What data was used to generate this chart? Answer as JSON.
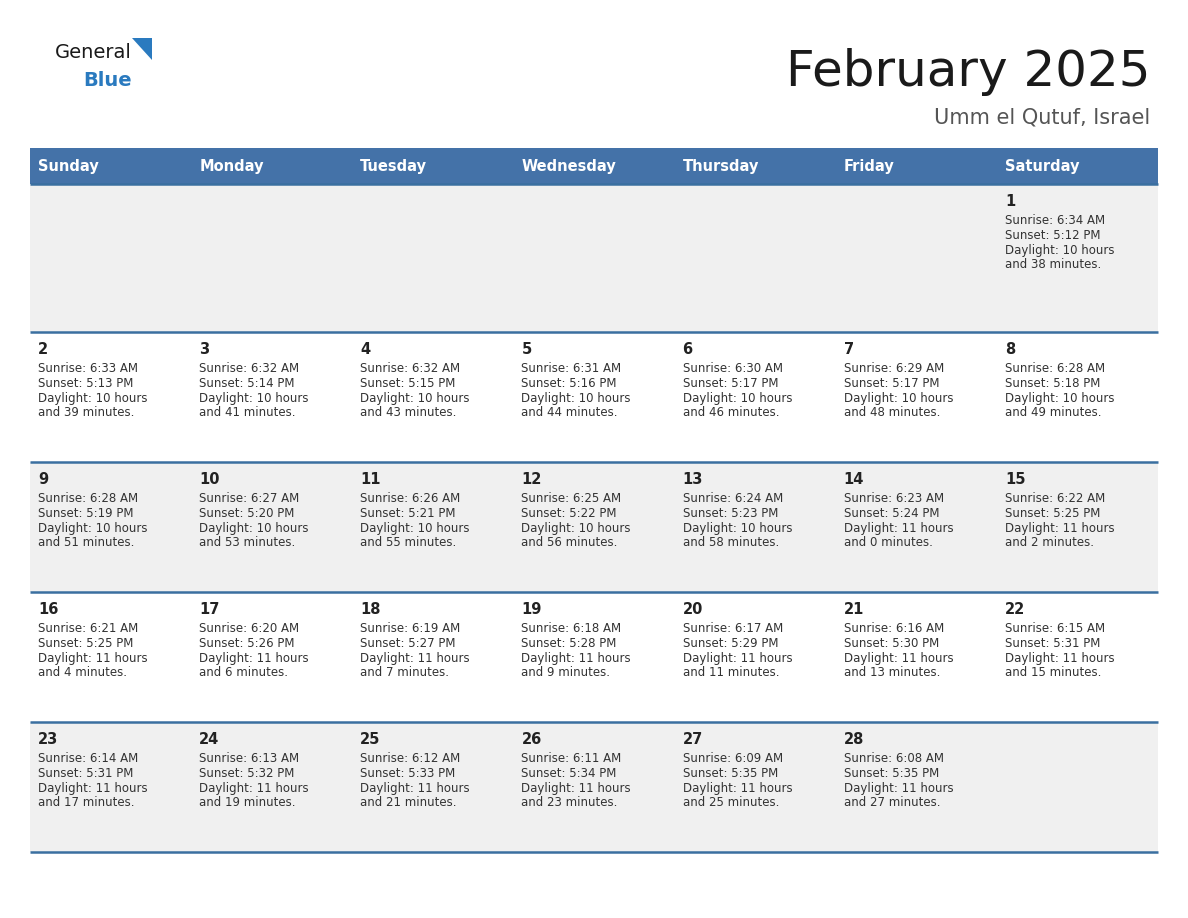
{
  "title": "February 2025",
  "subtitle": "Umm el Qutuf, Israel",
  "days_of_week": [
    "Sunday",
    "Monday",
    "Tuesday",
    "Wednesday",
    "Thursday",
    "Friday",
    "Saturday"
  ],
  "header_bg": "#4472a8",
  "header_text_color": "#ffffff",
  "row_bg_odd": "#f0f0f0",
  "row_bg_even": "#ffffff",
  "divider_color": "#3a6fa0",
  "text_color": "#333333",
  "day_number_color": "#222222",
  "logo_general_color": "#1a1a1a",
  "logo_blue_color": "#2a7abf",
  "logo_triangle_color": "#2a7abf",
  "calendar_data": [
    [
      null,
      null,
      null,
      null,
      null,
      null,
      {
        "day": 1,
        "sunrise": "6:34 AM",
        "sunset": "5:12 PM",
        "daylight": "10 hours and 38 minutes."
      }
    ],
    [
      {
        "day": 2,
        "sunrise": "6:33 AM",
        "sunset": "5:13 PM",
        "daylight": "10 hours and 39 minutes."
      },
      {
        "day": 3,
        "sunrise": "6:32 AM",
        "sunset": "5:14 PM",
        "daylight": "10 hours and 41 minutes."
      },
      {
        "day": 4,
        "sunrise": "6:32 AM",
        "sunset": "5:15 PM",
        "daylight": "10 hours and 43 minutes."
      },
      {
        "day": 5,
        "sunrise": "6:31 AM",
        "sunset": "5:16 PM",
        "daylight": "10 hours and 44 minutes."
      },
      {
        "day": 6,
        "sunrise": "6:30 AM",
        "sunset": "5:17 PM",
        "daylight": "10 hours and 46 minutes."
      },
      {
        "day": 7,
        "sunrise": "6:29 AM",
        "sunset": "5:17 PM",
        "daylight": "10 hours and 48 minutes."
      },
      {
        "day": 8,
        "sunrise": "6:28 AM",
        "sunset": "5:18 PM",
        "daylight": "10 hours and 49 minutes."
      }
    ],
    [
      {
        "day": 9,
        "sunrise": "6:28 AM",
        "sunset": "5:19 PM",
        "daylight": "10 hours and 51 minutes."
      },
      {
        "day": 10,
        "sunrise": "6:27 AM",
        "sunset": "5:20 PM",
        "daylight": "10 hours and 53 minutes."
      },
      {
        "day": 11,
        "sunrise": "6:26 AM",
        "sunset": "5:21 PM",
        "daylight": "10 hours and 55 minutes."
      },
      {
        "day": 12,
        "sunrise": "6:25 AM",
        "sunset": "5:22 PM",
        "daylight": "10 hours and 56 minutes."
      },
      {
        "day": 13,
        "sunrise": "6:24 AM",
        "sunset": "5:23 PM",
        "daylight": "10 hours and 58 minutes."
      },
      {
        "day": 14,
        "sunrise": "6:23 AM",
        "sunset": "5:24 PM",
        "daylight": "11 hours and 0 minutes."
      },
      {
        "day": 15,
        "sunrise": "6:22 AM",
        "sunset": "5:25 PM",
        "daylight": "11 hours and 2 minutes."
      }
    ],
    [
      {
        "day": 16,
        "sunrise": "6:21 AM",
        "sunset": "5:25 PM",
        "daylight": "11 hours and 4 minutes."
      },
      {
        "day": 17,
        "sunrise": "6:20 AM",
        "sunset": "5:26 PM",
        "daylight": "11 hours and 6 minutes."
      },
      {
        "day": 18,
        "sunrise": "6:19 AM",
        "sunset": "5:27 PM",
        "daylight": "11 hours and 7 minutes."
      },
      {
        "day": 19,
        "sunrise": "6:18 AM",
        "sunset": "5:28 PM",
        "daylight": "11 hours and 9 minutes."
      },
      {
        "day": 20,
        "sunrise": "6:17 AM",
        "sunset": "5:29 PM",
        "daylight": "11 hours and 11 minutes."
      },
      {
        "day": 21,
        "sunrise": "6:16 AM",
        "sunset": "5:30 PM",
        "daylight": "11 hours and 13 minutes."
      },
      {
        "day": 22,
        "sunrise": "6:15 AM",
        "sunset": "5:31 PM",
        "daylight": "11 hours and 15 minutes."
      }
    ],
    [
      {
        "day": 23,
        "sunrise": "6:14 AM",
        "sunset": "5:31 PM",
        "daylight": "11 hours and 17 minutes."
      },
      {
        "day": 24,
        "sunrise": "6:13 AM",
        "sunset": "5:32 PM",
        "daylight": "11 hours and 19 minutes."
      },
      {
        "day": 25,
        "sunrise": "6:12 AM",
        "sunset": "5:33 PM",
        "daylight": "11 hours and 21 minutes."
      },
      {
        "day": 26,
        "sunrise": "6:11 AM",
        "sunset": "5:34 PM",
        "daylight": "11 hours and 23 minutes."
      },
      {
        "day": 27,
        "sunrise": "6:09 AM",
        "sunset": "5:35 PM",
        "daylight": "11 hours and 25 minutes."
      },
      {
        "day": 28,
        "sunrise": "6:08 AM",
        "sunset": "5:35 PM",
        "daylight": "11 hours and 27 minutes."
      },
      null
    ]
  ]
}
